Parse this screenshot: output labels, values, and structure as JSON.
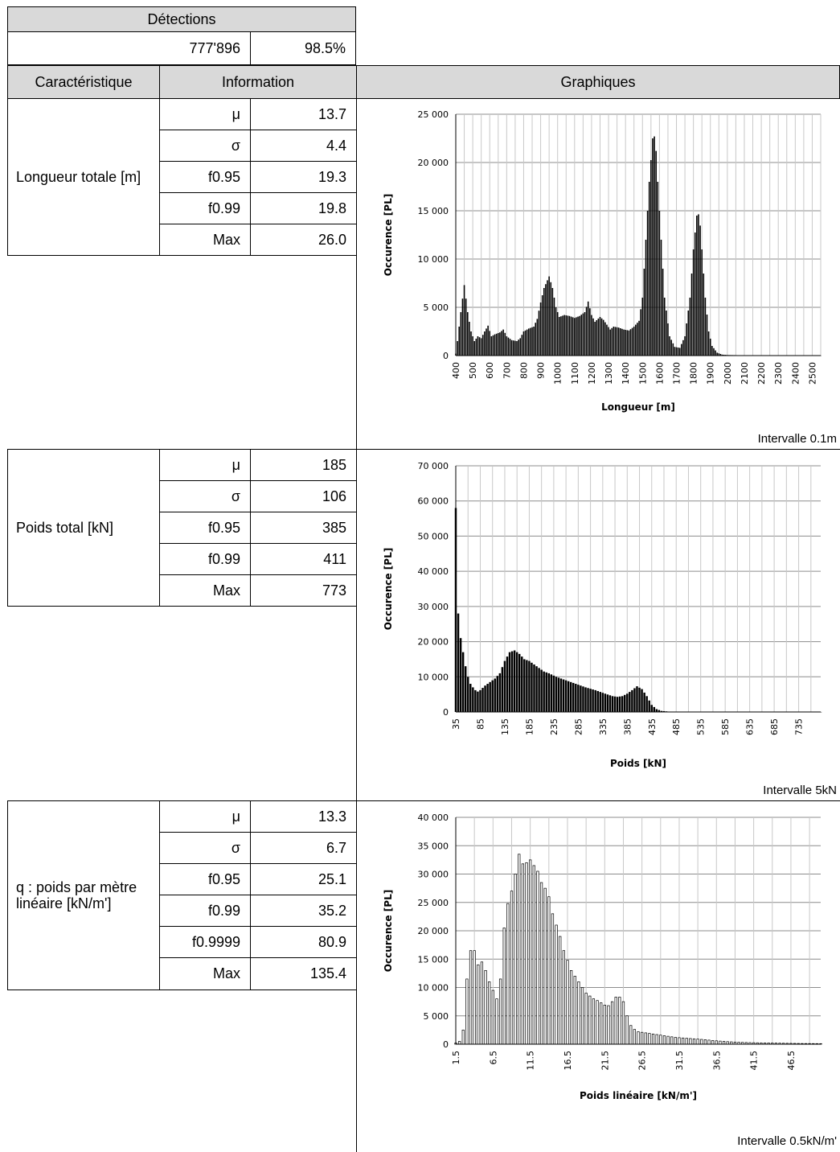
{
  "header": {
    "detections_label": "Détections",
    "count": "777'896",
    "percent": "98.5%",
    "col_characteristic": "Caractéristique",
    "col_information": "Information",
    "col_graphs": "Graphiques"
  },
  "sections": [
    {
      "name": "Longueur totale [m]",
      "stats": [
        {
          "label": "μ",
          "value": "13.7"
        },
        {
          "label": "σ",
          "value": "4.4"
        },
        {
          "label": "f0.95",
          "value": "19.3"
        },
        {
          "label": "f0.99",
          "value": "19.8"
        },
        {
          "label": "Max",
          "value": "26.0"
        }
      ],
      "interval": "Intervalle 0.1m"
    },
    {
      "name": "Poids total [kN]",
      "stats": [
        {
          "label": "μ",
          "value": "185"
        },
        {
          "label": "σ",
          "value": "106"
        },
        {
          "label": "f0.95",
          "value": "385"
        },
        {
          "label": "f0.99",
          "value": "411"
        },
        {
          "label": "Max",
          "value": "773"
        }
      ],
      "interval": "Intervalle 5kN"
    },
    {
      "name": "q : poids par mètre linéaire [kN/m']",
      "stats": [
        {
          "label": "μ",
          "value": "13.3"
        },
        {
          "label": "σ",
          "value": "6.7"
        },
        {
          "label": "f0.95",
          "value": "25.1"
        },
        {
          "label": "f0.99",
          "value": "35.2"
        },
        {
          "label": "f0.9999",
          "value": "80.9"
        },
        {
          "label": "Max",
          "value": "135.4"
        }
      ],
      "interval": "Intervalle 0.5kN/m'"
    }
  ],
  "chart_data": [
    {
      "type": "bar",
      "xlabel": "Longueur [m]",
      "ylabel": "Occurence [PL]",
      "ylim": [
        0,
        25000
      ],
      "yticks": [
        "0",
        "5 000",
        "10 000",
        "15 000",
        "20 000",
        "25 000"
      ],
      "xticks": [
        "400",
        "500",
        "600",
        "700",
        "800",
        "900",
        "1000",
        "1100",
        "1200",
        "1300",
        "1400",
        "1500",
        "1600",
        "1700",
        "1800",
        "1900",
        "2000",
        "2100",
        "2200",
        "2300",
        "2400",
        "2500"
      ],
      "x_start": 400,
      "x_end": 2550,
      "bar_step": 10,
      "profile": [
        [
          400,
          200
        ],
        [
          410,
          1500
        ],
        [
          430,
          4500
        ],
        [
          450,
          7300
        ],
        [
          470,
          4500
        ],
        [
          490,
          2500
        ],
        [
          510,
          1500
        ],
        [
          530,
          2000
        ],
        [
          550,
          1800
        ],
        [
          570,
          2500
        ],
        [
          590,
          3100
        ],
        [
          610,
          2000
        ],
        [
          630,
          2200
        ],
        [
          660,
          2400
        ],
        [
          680,
          2700
        ],
        [
          700,
          2000
        ],
        [
          730,
          1600
        ],
        [
          760,
          1500
        ],
        [
          780,
          1800
        ],
        [
          800,
          2500
        ],
        [
          830,
          2800
        ],
        [
          860,
          3000
        ],
        [
          880,
          3800
        ],
        [
          900,
          5500
        ],
        [
          920,
          7000
        ],
        [
          950,
          8200
        ],
        [
          970,
          7000
        ],
        [
          990,
          5000
        ],
        [
          1010,
          4000
        ],
        [
          1040,
          4200
        ],
        [
          1070,
          4100
        ],
        [
          1100,
          3900
        ],
        [
          1130,
          4100
        ],
        [
          1160,
          4500
        ],
        [
          1180,
          5600
        ],
        [
          1200,
          4200
        ],
        [
          1220,
          3500
        ],
        [
          1250,
          4000
        ],
        [
          1270,
          3700
        ],
        [
          1290,
          3200
        ],
        [
          1310,
          2700
        ],
        [
          1330,
          3000
        ],
        [
          1360,
          2900
        ],
        [
          1390,
          2700
        ],
        [
          1420,
          2600
        ],
        [
          1450,
          3000
        ],
        [
          1480,
          3600
        ],
        [
          1500,
          6000
        ],
        [
          1520,
          12000
        ],
        [
          1540,
          18000
        ],
        [
          1560,
          22500
        ],
        [
          1575,
          22800
        ],
        [
          1590,
          18000
        ],
        [
          1610,
          12000
        ],
        [
          1630,
          6000
        ],
        [
          1660,
          2000
        ],
        [
          1690,
          900
        ],
        [
          1720,
          800
        ],
        [
          1750,
          2000
        ],
        [
          1780,
          6000
        ],
        [
          1800,
          11000
        ],
        [
          1820,
          14500
        ],
        [
          1835,
          14700
        ],
        [
          1850,
          11000
        ],
        [
          1870,
          6000
        ],
        [
          1890,
          2500
        ],
        [
          1910,
          1000
        ],
        [
          1940,
          300
        ],
        [
          1970,
          100
        ],
        [
          2000,
          60
        ],
        [
          2100,
          30
        ],
        [
          2550,
          10
        ]
      ]
    },
    {
      "type": "bar",
      "xlabel": "Poids [kN]",
      "ylabel": "Occurence [PL]",
      "ylim": [
        0,
        70000
      ],
      "yticks": [
        "0",
        "10 000",
        "20 000",
        "30 000",
        "40 000",
        "50 000",
        "60 000",
        "70 000"
      ],
      "xticks": [
        "35",
        "85",
        "135",
        "185",
        "235",
        "285",
        "335",
        "385",
        "435",
        "485",
        "535",
        "585",
        "635",
        "685",
        "735"
      ],
      "x_start": 35,
      "x_end": 780,
      "bar_step": 5,
      "profile": [
        [
          35,
          58000
        ],
        [
          40,
          28000
        ],
        [
          45,
          21000
        ],
        [
          50,
          17000
        ],
        [
          55,
          13000
        ],
        [
          60,
          10000
        ],
        [
          65,
          8000
        ],
        [
          70,
          7000
        ],
        [
          75,
          6200
        ],
        [
          80,
          5800
        ],
        [
          85,
          6200
        ],
        [
          95,
          7500
        ],
        [
          105,
          8500
        ],
        [
          115,
          9500
        ],
        [
          125,
          11000
        ],
        [
          135,
          14500
        ],
        [
          145,
          17000
        ],
        [
          155,
          17500
        ],
        [
          165,
          16500
        ],
        [
          175,
          15000
        ],
        [
          185,
          14500
        ],
        [
          195,
          13500
        ],
        [
          205,
          12500
        ],
        [
          215,
          11500
        ],
        [
          225,
          11000
        ],
        [
          240,
          10000
        ],
        [
          260,
          9000
        ],
        [
          280,
          8000
        ],
        [
          300,
          7000
        ],
        [
          320,
          6200
        ],
        [
          340,
          5200
        ],
        [
          355,
          4500
        ],
        [
          365,
          4300
        ],
        [
          375,
          4500
        ],
        [
          385,
          5200
        ],
        [
          395,
          6200
        ],
        [
          405,
          7300
        ],
        [
          415,
          6500
        ],
        [
          425,
          4500
        ],
        [
          435,
          2000
        ],
        [
          445,
          800
        ],
        [
          455,
          300
        ],
        [
          470,
          100
        ],
        [
          500,
          60
        ],
        [
          780,
          20
        ]
      ]
    },
    {
      "type": "bar",
      "xlabel": "Poids linéaire [kN/m']",
      "ylabel": "Occurence [PL]",
      "ylim": [
        0,
        40000
      ],
      "yticks": [
        "0",
        "5 000",
        "10 000",
        "15 000",
        "20 000",
        "25 000",
        "30 000",
        "35 000",
        "40 000"
      ],
      "xticks": [
        "1.5",
        "6.5",
        "11.5",
        "16.5",
        "21.5",
        "26.5",
        "31.5",
        "36.5",
        "41.5",
        "46.5"
      ],
      "x_start": 1.5,
      "x_end": 50.5,
      "bar_step": 0.5,
      "profile": [
        [
          1.5,
          200
        ],
        [
          2,
          500
        ],
        [
          2.5,
          2500
        ],
        [
          3,
          11500
        ],
        [
          3.5,
          16500
        ],
        [
          4,
          16500
        ],
        [
          4.5,
          14000
        ],
        [
          5,
          14500
        ],
        [
          5.5,
          13000
        ],
        [
          6,
          11000
        ],
        [
          6.5,
          9500
        ],
        [
          7,
          8000
        ],
        [
          7.5,
          11500
        ],
        [
          8,
          20500
        ],
        [
          8.5,
          24800
        ],
        [
          9,
          27000
        ],
        [
          9.5,
          30000
        ],
        [
          10,
          33500
        ],
        [
          10.5,
          31800
        ],
        [
          11,
          32000
        ],
        [
          11.5,
          32500
        ],
        [
          12,
          31500
        ],
        [
          12.5,
          30500
        ],
        [
          13,
          28500
        ],
        [
          13.5,
          27500
        ],
        [
          14,
          26000
        ],
        [
          14.5,
          23000
        ],
        [
          15,
          21000
        ],
        [
          15.5,
          19000
        ],
        [
          16,
          16500
        ],
        [
          16.5,
          14800
        ],
        [
          17,
          13000
        ],
        [
          17.5,
          12000
        ],
        [
          18,
          11000
        ],
        [
          18.5,
          10000
        ],
        [
          19,
          9000
        ],
        [
          19.5,
          8500
        ],
        [
          20,
          8000
        ],
        [
          20.5,
          7700
        ],
        [
          21,
          7300
        ],
        [
          21.5,
          6900
        ],
        [
          22,
          6800
        ],
        [
          22.5,
          7500
        ],
        [
          23,
          8300
        ],
        [
          23.5,
          8300
        ],
        [
          24,
          7500
        ],
        [
          24.5,
          5000
        ],
        [
          25,
          3300
        ],
        [
          25.5,
          2600
        ],
        [
          26,
          2200
        ],
        [
          27,
          2000
        ],
        [
          28,
          1800
        ],
        [
          29,
          1600
        ],
        [
          30,
          1400
        ],
        [
          31,
          1200
        ],
        [
          32,
          1100
        ],
        [
          33,
          1000
        ],
        [
          34,
          900
        ],
        [
          35,
          800
        ],
        [
          36,
          650
        ],
        [
          37,
          550
        ],
        [
          38,
          450
        ],
        [
          39,
          380
        ],
        [
          40,
          320
        ],
        [
          41,
          280
        ],
        [
          42,
          250
        ],
        [
          43,
          220
        ],
        [
          44,
          200
        ],
        [
          46,
          160
        ],
        [
          48,
          120
        ],
        [
          50.5,
          100
        ]
      ]
    }
  ]
}
